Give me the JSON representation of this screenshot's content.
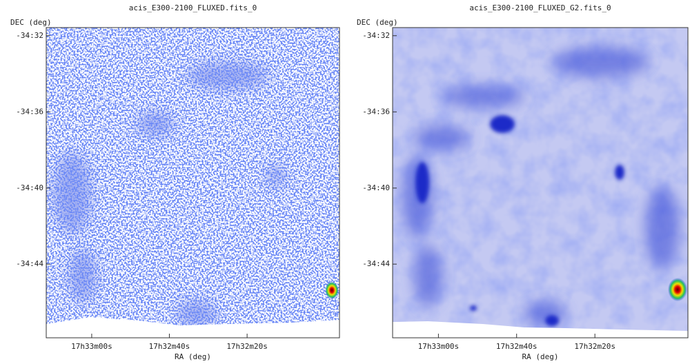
{
  "chart_data": [
    {
      "type": "image",
      "title": "acis_E300-2100_FLUXED.fits_0",
      "xlabel": "RA (deg)",
      "ylabel": "DEC (deg)",
      "xlim": [
        263.2988,
        262.9842
      ],
      "ylim": [
        -34.7978,
        -34.5262
      ],
      "xticks": [
        {
          "value": 263.25,
          "label": "17h33m00s"
        },
        {
          "value": 263.1667,
          "label": "17h32m40s"
        },
        {
          "value": 263.0833,
          "label": "17h32m20s"
        }
      ],
      "yticks": [
        {
          "value": -34.5333,
          "label": "-34:32"
        },
        {
          "value": -34.6,
          "label": "-34:36"
        },
        {
          "value": -34.6667,
          "label": "-34:40"
        },
        {
          "value": -34.7333,
          "label": "-34:44"
        }
      ]
    },
    {
      "type": "image",
      "title": "acis_E300-2100_FLUXED_G2.fits_0",
      "xlabel": "RA (deg)",
      "ylabel": "DEC (deg)",
      "xlim": [
        263.2988,
        262.9842
      ],
      "ylim": [
        -34.7978,
        -34.5262
      ],
      "xticks": [
        {
          "value": 263.25,
          "label": "17h33m00s"
        },
        {
          "value": 263.1667,
          "label": "17h32m40s"
        },
        {
          "value": 263.0833,
          "label": "17h32m20s"
        }
      ],
      "yticks": [
        {
          "value": -34.5333,
          "label": "-34:32"
        },
        {
          "value": -34.6,
          "label": "-34:36"
        },
        {
          "value": -34.6667,
          "label": "-34:40"
        },
        {
          "value": -34.7333,
          "label": "-34:44"
        }
      ]
    }
  ]
}
